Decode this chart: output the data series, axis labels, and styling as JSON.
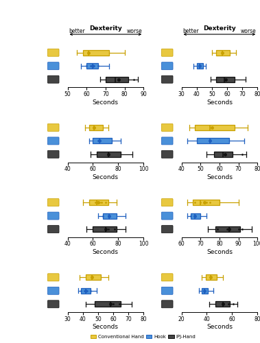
{
  "subplots": [
    {
      "row": 0,
      "col": 0,
      "xlim": [
        50,
        90
      ],
      "xticks": [
        50,
        60,
        70,
        80,
        90
      ],
      "boxes": [
        {
          "whislo": 55,
          "q1": 58,
          "med": 61,
          "q3": 72,
          "whishi": 80,
          "mean": 61,
          "fliers": []
        },
        {
          "whislo": 57,
          "q1": 60,
          "med": 63,
          "q3": 66,
          "whishi": 72,
          "mean": 63,
          "fliers": [
            60,
            62,
            64,
            66
          ]
        },
        {
          "whislo": 67,
          "q1": 70,
          "med": 75,
          "q3": 82,
          "whishi": 87,
          "mean": 77,
          "fliers": [
            85
          ]
        }
      ]
    },
    {
      "row": 0,
      "col": 1,
      "xlim": [
        30,
        80
      ],
      "xticks": [
        30,
        40,
        50,
        60,
        70,
        80
      ],
      "boxes": [
        {
          "whislo": 50,
          "q1": 53,
          "med": 57,
          "q3": 62,
          "whishi": 66,
          "mean": 57,
          "fliers": []
        },
        {
          "whislo": 38,
          "q1": 40,
          "med": 42,
          "q3": 44,
          "whishi": 46,
          "mean": 42,
          "fliers": []
        },
        {
          "whislo": 49,
          "q1": 53,
          "med": 58,
          "q3": 65,
          "whishi": 72,
          "mean": 59,
          "fliers": []
        }
      ]
    },
    {
      "row": 1,
      "col": 0,
      "xlim": [
        40,
        100
      ],
      "xticks": [
        40,
        60,
        80,
        100
      ],
      "boxes": [
        {
          "whislo": 54,
          "q1": 57,
          "med": 61,
          "q3": 68,
          "whishi": 72,
          "mean": 61,
          "fliers": []
        },
        {
          "whislo": 57,
          "q1": 60,
          "med": 65,
          "q3": 75,
          "whishi": 82,
          "mean": 65,
          "fliers": [
            64
          ]
        },
        {
          "whislo": 58,
          "q1": 63,
          "med": 72,
          "q3": 82,
          "whishi": 91,
          "mean": 72,
          "fliers": []
        }
      ]
    },
    {
      "row": 1,
      "col": 1,
      "xlim": [
        40,
        80
      ],
      "xticks": [
        40,
        50,
        60,
        70,
        80
      ],
      "boxes": [
        {
          "whislo": 44,
          "q1": 47,
          "med": 55,
          "q3": 68,
          "whishi": 75,
          "mean": 56,
          "fliers": []
        },
        {
          "whislo": 43,
          "q1": 48,
          "med": 55,
          "q3": 65,
          "whishi": 73,
          "mean": 55,
          "fliers": []
        },
        {
          "whislo": 53,
          "q1": 57,
          "med": 62,
          "q3": 67,
          "whishi": 74,
          "mean": 63,
          "fliers": [
            72
          ]
        }
      ]
    },
    {
      "row": 2,
      "col": 0,
      "xlim": [
        40,
        100
      ],
      "xticks": [
        40,
        60,
        80,
        100
      ],
      "boxes": [
        {
          "whislo": 52,
          "q1": 57,
          "med": 63,
          "q3": 72,
          "whishi": 79,
          "mean": 64,
          "fliers": [
            62,
            65,
            67,
            70
          ]
        },
        {
          "whislo": 64,
          "q1": 68,
          "med": 73,
          "q3": 79,
          "whishi": 86,
          "mean": 73,
          "fliers": [
            68,
            72
          ]
        },
        {
          "whislo": 55,
          "q1": 60,
          "med": 70,
          "q3": 79,
          "whishi": 86,
          "mean": 70,
          "fliers": [
            72,
            77
          ]
        }
      ]
    },
    {
      "row": 2,
      "col": 1,
      "xlim": [
        60,
        100
      ],
      "xticks": [
        60,
        70,
        80,
        90,
        100
      ],
      "boxes": [
        {
          "whislo": 63,
          "q1": 66,
          "med": 70,
          "q3": 80,
          "whishi": 90,
          "mean": 72,
          "fliers": [
            67,
            70,
            73,
            75
          ]
        },
        {
          "whislo": 63,
          "q1": 65,
          "med": 67,
          "q3": 70,
          "whishi": 73,
          "mean": 67,
          "fliers": [
            65,
            67
          ]
        },
        {
          "whislo": 74,
          "q1": 78,
          "med": 85,
          "q3": 91,
          "whishi": 97,
          "mean": 85,
          "fliers": [
            79,
            84,
            90,
            92
          ]
        }
      ]
    },
    {
      "row": 3,
      "col": 0,
      "xlim": [
        30,
        80
      ],
      "xticks": [
        30,
        40,
        50,
        60,
        70,
        80
      ],
      "boxes": [
        {
          "whislo": 38,
          "q1": 42,
          "med": 46,
          "q3": 52,
          "whishi": 57,
          "mean": 46,
          "fliers": []
        },
        {
          "whislo": 37,
          "q1": 39,
          "med": 42,
          "q3": 45,
          "whishi": 49,
          "mean": 42,
          "fliers": [
            39,
            41,
            43,
            45
          ]
        },
        {
          "whislo": 42,
          "q1": 48,
          "med": 58,
          "q3": 65,
          "whishi": 72,
          "mean": 58,
          "fliers": [
            60,
            64
          ]
        }
      ]
    },
    {
      "row": 3,
      "col": 1,
      "xlim": [
        20,
        80
      ],
      "xticks": [
        20,
        40,
        60,
        80
      ],
      "boxes": [
        {
          "whislo": 36,
          "q1": 39,
          "med": 43,
          "q3": 48,
          "whishi": 53,
          "mean": 43,
          "fliers": []
        },
        {
          "whislo": 34,
          "q1": 36,
          "med": 38,
          "q3": 41,
          "whishi": 45,
          "mean": 38,
          "fliers": []
        },
        {
          "whislo": 42,
          "q1": 47,
          "med": 53,
          "q3": 58,
          "whishi": 64,
          "mean": 53,
          "fliers": [
            57,
            61
          ]
        }
      ]
    }
  ],
  "colors": [
    "#C8A000",
    "#1E5FBF",
    "#111111"
  ],
  "box_facecolors": [
    "#E8C840",
    "#4A90D9",
    "#444444"
  ],
  "xlabel": "Seconds",
  "arrow_label": "Dexterity",
  "better_label": "better",
  "worse_label": "worse",
  "legend_labels": [
    "Conventional Hand",
    "Hook",
    "IPJ-Hand"
  ],
  "tick_fontsize": 5.5,
  "label_fontsize": 6.5,
  "arrow_fontsize": 6.5,
  "better_worse_fontsize": 5.5
}
